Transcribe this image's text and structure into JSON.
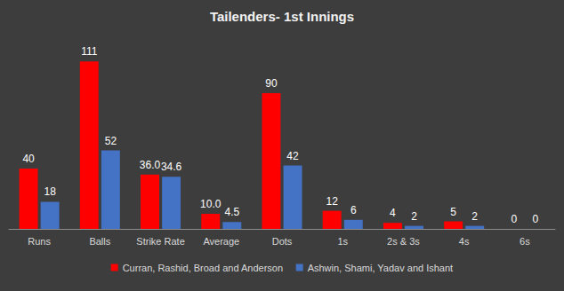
{
  "chart_data": {
    "type": "bar",
    "title": "Tailenders- 1st Innings",
    "categories": [
      "Runs",
      "Balls",
      "Strike Rate",
      "Average",
      "Dots",
      "1s",
      "2s & 3s",
      "4s",
      "6s"
    ],
    "series": [
      {
        "name": "Curran, Rashid, Broad and Anderson",
        "color": "#ff0000",
        "values": [
          40,
          111,
          36.0,
          10.0,
          90,
          12,
          4,
          5,
          0
        ],
        "value_labels": [
          "40",
          "111",
          "36.0",
          "10.0",
          "90",
          "12",
          "4",
          "5",
          "0"
        ]
      },
      {
        "name": "Ashwin, Shami, Yadav and Ishant",
        "color": "#4472c4",
        "values": [
          18,
          52,
          34.6,
          4.5,
          42,
          6,
          2,
          2,
          0
        ],
        "value_labels": [
          "18",
          "52",
          "34.6",
          "4.5",
          "42",
          "6",
          "2",
          "2",
          "0"
        ]
      }
    ],
    "ylim": [
      0,
      120
    ],
    "data_labels": true,
    "grid": false,
    "legend": "bottom",
    "tick_labels": "x"
  }
}
